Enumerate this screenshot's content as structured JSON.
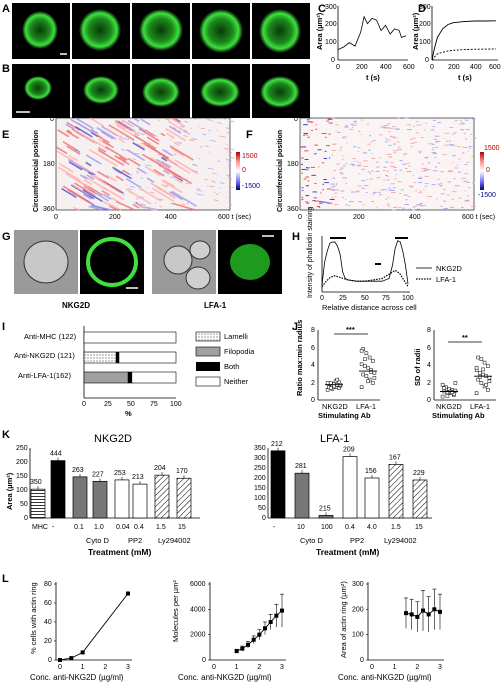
{
  "panels": {
    "A": "A",
    "B": "B",
    "C": "C",
    "D": "D",
    "E": "E",
    "F": "F",
    "G": "G",
    "H": "H",
    "I": "I",
    "J": "J",
    "K": "K",
    "L": "L"
  },
  "C": {
    "ylabel": "Area (µm²)",
    "xlabel": "t (s)",
    "xticks": [
      "0",
      "200",
      "400",
      "600"
    ],
    "yticks": [
      "0",
      "100",
      "200",
      "300"
    ]
  },
  "D": {
    "ylabel": "Area (µm²)",
    "xlabel": "t (s)",
    "xticks": [
      "0",
      "200",
      "400",
      "600"
    ],
    "yticks": [
      "0",
      "100",
      "200",
      "300"
    ]
  },
  "E": {
    "ylabel": "Circumferencial position",
    "xlabel": "600 t (sec)",
    "xticks": [
      "0",
      "200",
      "400"
    ],
    "yticks": [
      "0",
      "180",
      "360"
    ],
    "cbar": [
      "1500",
      "0",
      "-1500"
    ]
  },
  "F": {
    "ylabel": "Circumferencial position",
    "xlabel": "600 t (sec)",
    "xticks": [
      "0",
      "200",
      "400"
    ],
    "yticks": [
      "0",
      "180",
      "360"
    ],
    "cbar": [
      "1500",
      "0",
      "-1500"
    ]
  },
  "G": {
    "left": "NKG2D",
    "right": "LFA-1"
  },
  "H": {
    "ylabel": "Intensity of phalloidin staining",
    "xlabel": "Relative distance across cell",
    "xticks": [
      "0",
      "25",
      "50",
      "75",
      "100"
    ],
    "legend": [
      "NKG2D",
      "LFA-1"
    ]
  },
  "I": {
    "categories": [
      "Anti-MHC (122)",
      "Anti-NKG2D (121)",
      "Anti-LFA-1(162)"
    ],
    "legend": [
      "Lamelli",
      "Filopodia",
      "Both",
      "Neither"
    ],
    "xticks": [
      "0",
      "25",
      "50",
      "75",
      "100"
    ],
    "xlabel": "%"
  },
  "J": {
    "left": {
      "ylabel": "Ratio max:min radius",
      "yticks": [
        "0",
        "2",
        "4",
        "6",
        "8"
      ],
      "cats": [
        "NKG2D",
        "LFA-1"
      ],
      "sig": "***",
      "xlabel": "Stimulating Ab"
    },
    "right": {
      "ylabel": "SD of radii",
      "yticks": [
        "0",
        "2",
        "4",
        "6",
        "8"
      ],
      "cats": [
        "NKG2D",
        "LFA-1"
      ],
      "sig": "**",
      "xlabel": "Stimulating Ab"
    }
  },
  "K": {
    "left": {
      "title": "NKG2D",
      "ylabel": "Area (µm²)",
      "yticks": [
        "0",
        "50",
        "100",
        "150",
        "200",
        "250"
      ],
      "labels": [
        "350",
        "444",
        "263",
        "227",
        "253",
        "213",
        "204",
        "170"
      ],
      "xrow": [
        "MHC",
        "-",
        "0.1",
        "1.0",
        "0.04",
        "0.4",
        "1.5",
        "15"
      ],
      "groups": [
        "Cyto D",
        "PP2",
        "Ly294002"
      ]
    },
    "right": {
      "title": "LFA-1",
      "yticks": [
        "0",
        "50",
        "100",
        "150",
        "200",
        "250",
        "300",
        "350"
      ],
      "labels": [
        "212",
        "281",
        "215",
        "209",
        "156",
        "167",
        "229"
      ],
      "xrow": [
        "-",
        "10",
        "100",
        "0.4",
        "4.0",
        "1.5",
        "15"
      ],
      "groups": [
        "Cyto D",
        "PP2",
        "Ly294002"
      ]
    },
    "xlabel": "Treatment (mM)"
  },
  "L": {
    "p1": {
      "ylabel": "% cells with actin ring",
      "xlabel": "Conc. anti-NKG2D (µg/ml)",
      "yticks": [
        "0",
        "20",
        "40",
        "60",
        "80"
      ],
      "xticks": [
        "0",
        "1",
        "2",
        "3"
      ]
    },
    "p2": {
      "ylabel": "Molecules per µm²",
      "xlabel": "Conc. anti-NKG2D (µg/ml)",
      "yticks": [
        "0",
        "2000",
        "4000",
        "6000"
      ],
      "xticks": [
        "0",
        "1",
        "2",
        "3"
      ]
    },
    "p3": {
      "ylabel": "Area of actin ring (µm²)",
      "xlabel": "Conc. anti-NKG2D (µg/ml)",
      "yticks": [
        "0",
        "100",
        "200",
        "300"
      ],
      "xticks": [
        "0",
        "1",
        "2",
        "3"
      ]
    }
  },
  "chart_data": [
    {
      "type": "line",
      "panel": "C",
      "x": [
        0,
        50,
        100,
        150,
        200,
        230,
        260,
        300,
        340,
        380,
        420,
        460,
        500,
        540,
        560,
        600
      ],
      "values": [
        60,
        75,
        100,
        80,
        160,
        250,
        210,
        240,
        230,
        170,
        200,
        150,
        180,
        170,
        130,
        140
      ],
      "ylim": [
        0,
        300
      ],
      "xlim": [
        0,
        600
      ]
    },
    {
      "type": "line",
      "panel": "D",
      "series": [
        {
          "name": "NKG2D",
          "x": [
            0,
            20,
            50,
            100,
            150,
            200,
            300,
            400,
            500,
            600
          ],
          "values": [
            0,
            60,
            130,
            180,
            205,
            215,
            222,
            225,
            225,
            226
          ]
        },
        {
          "name": "LFA-1",
          "x": [
            0,
            20,
            50,
            100,
            150,
            200,
            300,
            400,
            500,
            600
          ],
          "values": [
            0,
            15,
            35,
            45,
            52,
            56,
            60,
            62,
            63,
            64
          ]
        }
      ],
      "ylim": [
        0,
        300
      ],
      "xlim": [
        0,
        600
      ]
    },
    {
      "type": "line",
      "panel": "H",
      "series": [
        {
          "name": "NKG2D",
          "x": [
            0,
            3,
            6,
            9,
            12,
            15,
            18,
            21,
            24,
            27,
            30,
            40,
            50,
            60,
            70,
            78,
            82,
            85,
            88,
            91,
            94,
            97,
            100
          ],
          "values": [
            5,
            22,
            30,
            36,
            37,
            37,
            34,
            28,
            15,
            10,
            9,
            8,
            8,
            8,
            8,
            10,
            20,
            32,
            38,
            37,
            30,
            20,
            6
          ]
        },
        {
          "name": "LFA-1",
          "x": [
            0,
            5,
            10,
            15,
            20,
            30,
            40,
            50,
            60,
            70,
            80,
            85,
            90,
            95,
            100
          ],
          "values": [
            4,
            8,
            11,
            12,
            11,
            9,
            8,
            8,
            9,
            10,
            14,
            16,
            14,
            9,
            4
          ]
        }
      ],
      "xlim": [
        0,
        100
      ]
    },
    {
      "type": "bar",
      "panel": "I",
      "categories": [
        "Anti-MHC (122)",
        "Anti-NKG2D (121)",
        "Anti-LFA-1(162)"
      ],
      "series": [
        {
          "name": "Lamelli",
          "values": [
            0,
            35,
            0
          ]
        },
        {
          "name": "Filopodia",
          "values": [
            0,
            0,
            48
          ]
        },
        {
          "name": "Both",
          "values": [
            0,
            3,
            4
          ]
        },
        {
          "name": "Neither",
          "values": [
            100,
            62,
            48
          ]
        }
      ]
    },
    {
      "type": "scatter",
      "panel": "J-left",
      "series": [
        {
          "name": "NKG2D",
          "values": [
            1.2,
            1.4,
            1.5,
            1.6,
            1.6,
            1.7,
            1.8,
            1.9,
            2.0,
            2.0,
            2.1,
            2.2,
            1.3,
            1.5,
            1.8,
            2.4,
            1.6,
            1.4
          ],
          "mean": 1.8
        },
        {
          "name": "LFA-1",
          "values": [
            1.5,
            2.0,
            2.4,
            2.8,
            3.0,
            3.2,
            3.5,
            3.8,
            4.0,
            4.2,
            4.6,
            5.0,
            5.5,
            6.0,
            2.6,
            3.3,
            2.2,
            4.8,
            5.8
          ],
          "mean": 3.4
        }
      ],
      "ylim": [
        0,
        8
      ]
    },
    {
      "type": "scatter",
      "panel": "J-right",
      "series": [
        {
          "name": "NKG2D",
          "values": [
            0.4,
            0.6,
            0.8,
            0.9,
            1.0,
            1.1,
            1.2,
            1.3,
            1.5,
            1.8,
            0.7,
            1.0,
            0.5,
            1.4,
            2.0,
            0.9
          ],
          "mean": 1.0
        },
        {
          "name": "LFA-1",
          "values": [
            0.8,
            1.2,
            1.6,
            2.0,
            2.4,
            2.6,
            2.8,
            3.0,
            3.2,
            3.5,
            4.0,
            4.4,
            4.8,
            5.0,
            2.2,
            1.8,
            3.6,
            2.7,
            3.8
          ],
          "mean": 2.8
        }
      ],
      "ylim": [
        0,
        8
      ]
    },
    {
      "type": "bar",
      "panel": "K-left",
      "categories": [
        "MHC",
        "-",
        "0.1",
        "1.0",
        "0.04",
        "0.4",
        "1.5",
        "15"
      ],
      "values": [
        103,
        205,
        147,
        131,
        136,
        121,
        153,
        142
      ],
      "ylim": [
        0,
        250
      ]
    },
    {
      "type": "bar",
      "panel": "K-right",
      "categories": [
        "-",
        "10",
        "100",
        "0.4",
        "4.0",
        "1.5",
        "15"
      ],
      "values": [
        336,
        224,
        13,
        307,
        200,
        268,
        190
      ],
      "ylim": [
        0,
        350
      ]
    },
    {
      "type": "line",
      "panel": "L1",
      "x": [
        0,
        0.5,
        1,
        3
      ],
      "values": [
        0,
        2,
        8,
        70
      ],
      "ylim": [
        0,
        80
      ]
    },
    {
      "type": "line",
      "panel": "L2",
      "x": [
        1,
        1.25,
        1.5,
        1.75,
        2,
        2.25,
        2.5,
        2.75,
        3
      ],
      "values": [
        700,
        900,
        1200,
        1600,
        2000,
        2500,
        3000,
        3500,
        3900
      ],
      "err": [
        150,
        200,
        250,
        300,
        400,
        500,
        600,
        900,
        1300
      ],
      "ylim": [
        0,
        6000
      ]
    },
    {
      "type": "line",
      "panel": "L3",
      "x": [
        1.5,
        1.75,
        2,
        2.25,
        2.5,
        2.75,
        3
      ],
      "values": [
        185,
        180,
        170,
        195,
        180,
        200,
        190
      ],
      "err": [
        60,
        60,
        60,
        80,
        70,
        80,
        70
      ],
      "ylim": [
        0,
        300
      ]
    }
  ]
}
